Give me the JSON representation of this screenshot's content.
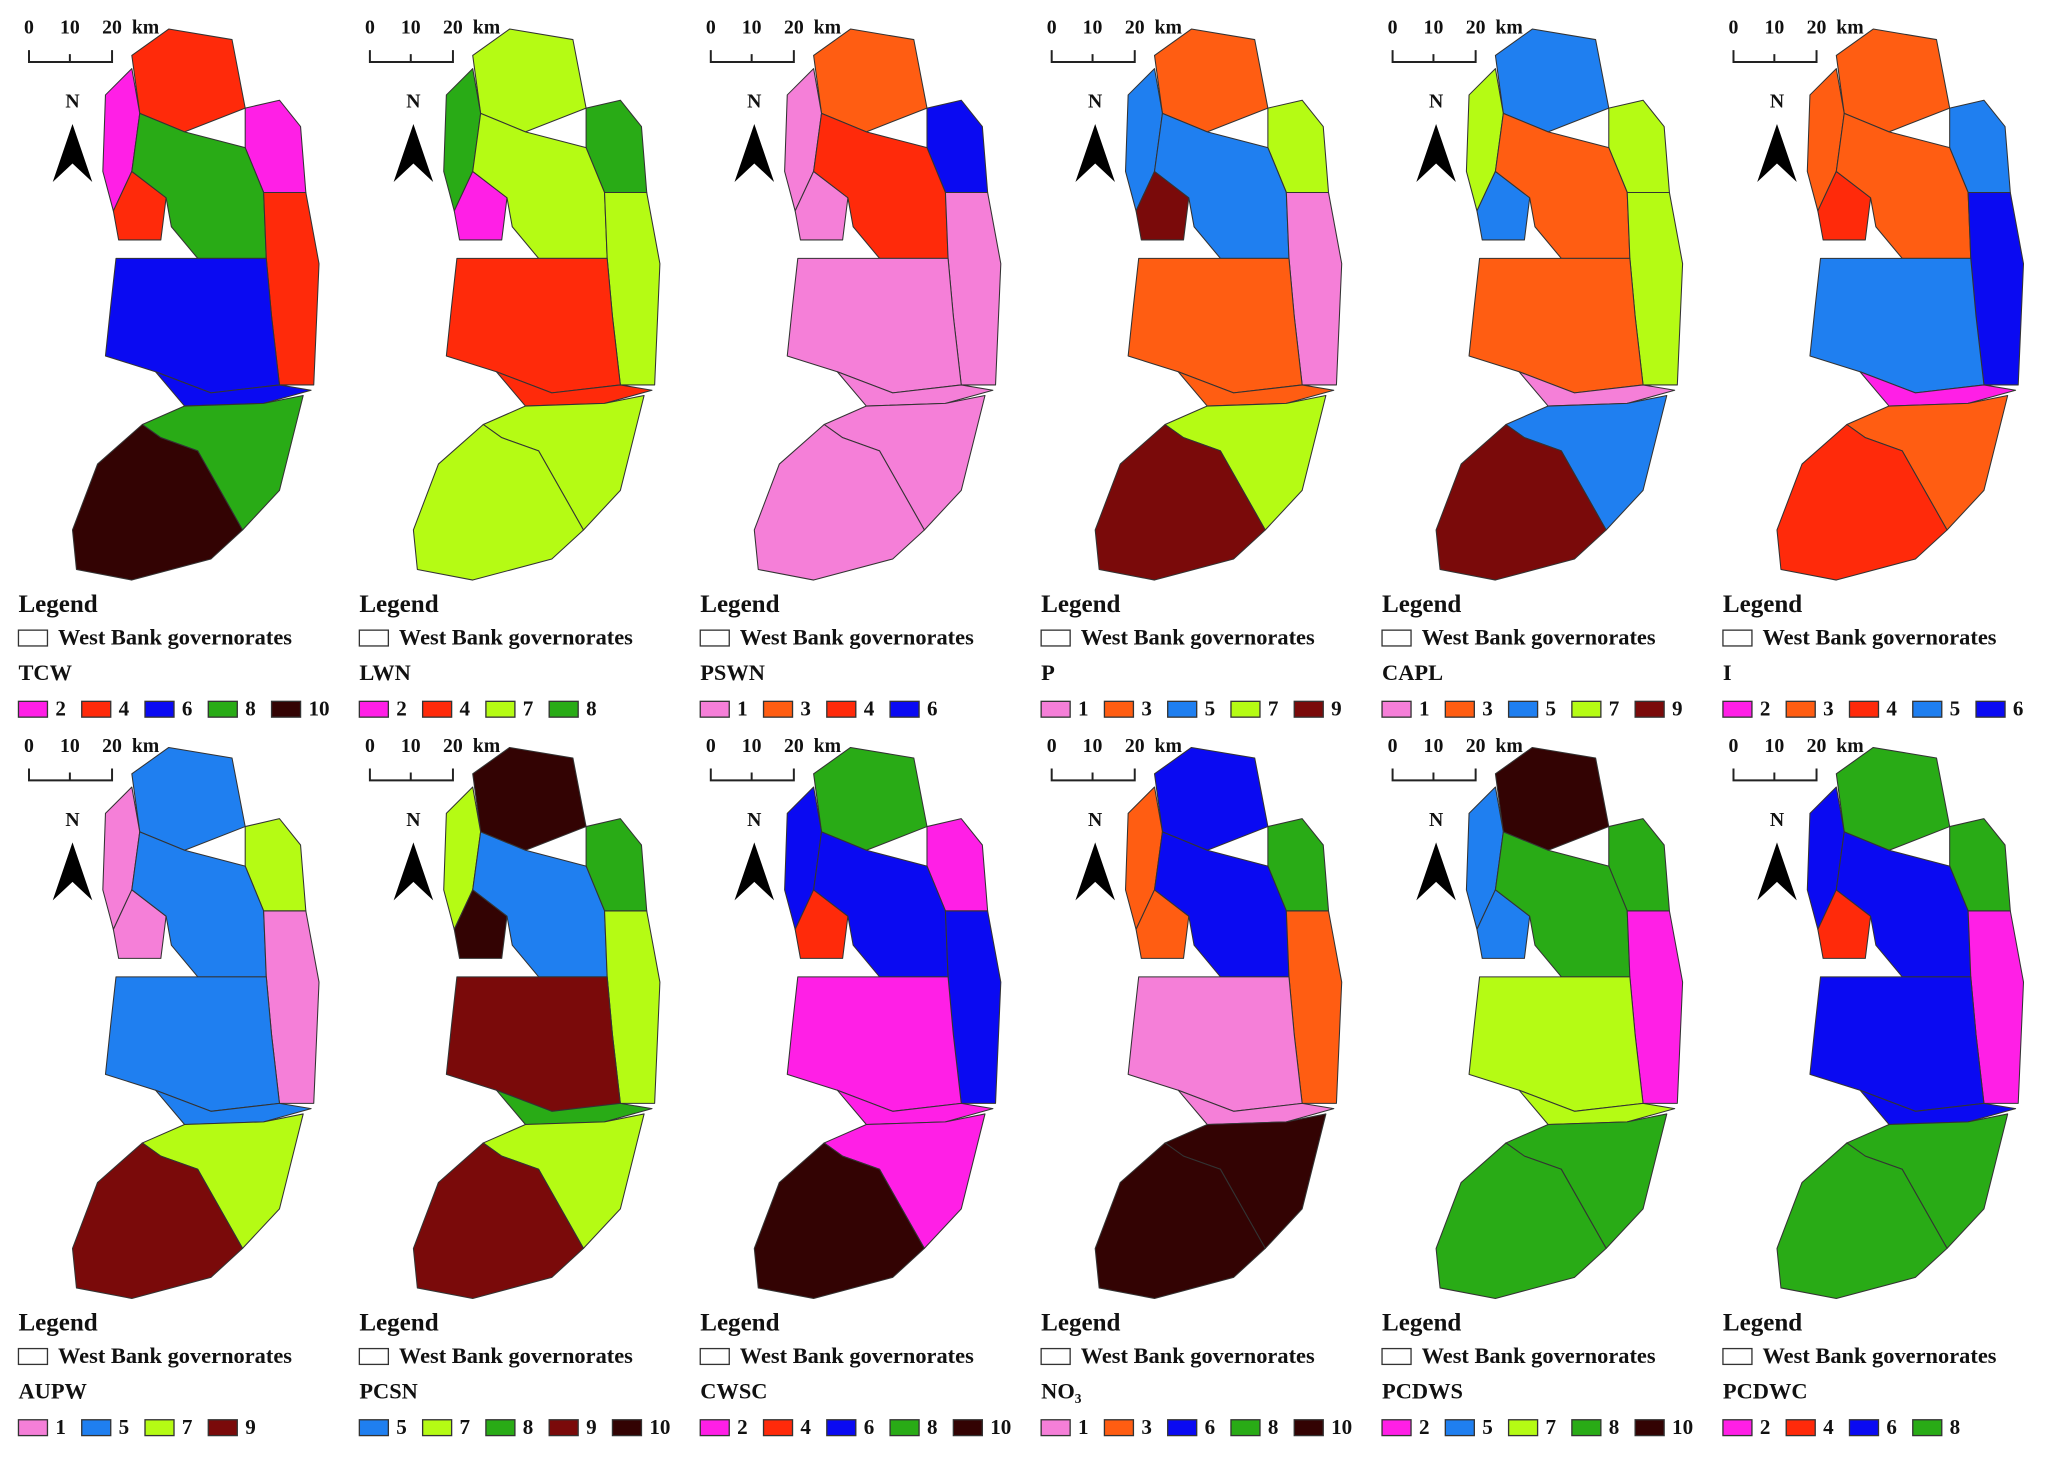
{
  "palette": {
    "1": "#f57fd8",
    "2": "#ff1fe6",
    "3": "#ff5d12",
    "4": "#ff2a0a",
    "5": "#1f7ff0",
    "6": "#0a0af2",
    "7": "#b5fb14",
    "8": "#29ab16",
    "9": "#7a0a0a",
    "10": "#330303"
  },
  "panels": [
    {
      "scale_ticks": [
        0,
        10,
        20
      ],
      "scale_unit": "km",
      "north": "N",
      "legend_title": "Legend",
      "layer": "West Bank governorates",
      "variable": "TCW",
      "classes": [
        2,
        4,
        6,
        8,
        10
      ],
      "regions": [
        4,
        2,
        2,
        4,
        8,
        4,
        6,
        6,
        8,
        10
      ]
    },
    {
      "scale_ticks": [
        0,
        10,
        20
      ],
      "scale_unit": "km",
      "north": "N",
      "legend_title": "Legend",
      "layer": "West Bank governorates",
      "variable": "LWN",
      "classes": [
        2,
        4,
        7,
        8
      ],
      "regions": [
        7,
        8,
        8,
        2,
        7,
        7,
        4,
        4,
        7,
        7
      ]
    },
    {
      "scale_ticks": [
        0,
        10,
        20
      ],
      "scale_unit": "km",
      "north": "N",
      "legend_title": "Legend",
      "layer": "West Bank governorates",
      "variable": "PSWN",
      "classes": [
        1,
        3,
        4,
        6
      ],
      "regions": [
        3,
        6,
        1,
        1,
        4,
        1,
        1,
        1,
        1,
        1
      ]
    },
    {
      "scale_ticks": [
        0,
        10,
        20
      ],
      "scale_unit": "km",
      "north": "N",
      "legend_title": "Legend",
      "layer": "West Bank governorates",
      "variable": "P",
      "classes": [
        1,
        3,
        5,
        7,
        9
      ],
      "regions": [
        3,
        7,
        5,
        9,
        5,
        1,
        3,
        3,
        7,
        9
      ]
    },
    {
      "scale_ticks": [
        0,
        10,
        20
      ],
      "scale_unit": "km",
      "north": "N",
      "legend_title": "Legend",
      "layer": "West Bank governorates",
      "variable": "CAPL",
      "classes": [
        1,
        3,
        5,
        7,
        9
      ],
      "regions": [
        5,
        7,
        7,
        5,
        3,
        7,
        3,
        1,
        5,
        9
      ]
    },
    {
      "scale_ticks": [
        0,
        10,
        20
      ],
      "scale_unit": "km",
      "north": "N",
      "legend_title": "Legend",
      "layer": "West Bank governorates",
      "variable": "I",
      "classes": [
        2,
        3,
        4,
        5,
        6
      ],
      "regions": [
        3,
        5,
        3,
        4,
        3,
        6,
        5,
        2,
        3,
        4
      ]
    },
    {
      "scale_ticks": [
        0,
        10,
        20
      ],
      "scale_unit": "km",
      "north": "N",
      "legend_title": "Legend",
      "layer": "West Bank governorates",
      "variable": "AUPW",
      "classes": [
        1,
        5,
        7,
        9
      ],
      "regions": [
        5,
        7,
        1,
        1,
        5,
        1,
        5,
        5,
        7,
        9
      ]
    },
    {
      "scale_ticks": [
        0,
        10,
        20
      ],
      "scale_unit": "km",
      "north": "N",
      "legend_title": "Legend",
      "layer": "West Bank governorates",
      "variable": "PCSN",
      "classes": [
        5,
        7,
        8,
        9,
        10
      ],
      "regions": [
        10,
        8,
        7,
        10,
        5,
        7,
        9,
        8,
        7,
        9
      ]
    },
    {
      "scale_ticks": [
        0,
        10,
        20
      ],
      "scale_unit": "km",
      "north": "N",
      "legend_title": "Legend",
      "layer": "West Bank governorates",
      "variable": "CWSC",
      "classes": [
        2,
        4,
        6,
        8,
        10
      ],
      "regions": [
        8,
        2,
        6,
        4,
        6,
        6,
        2,
        2,
        2,
        10
      ]
    },
    {
      "scale_ticks": [
        0,
        10,
        20
      ],
      "scale_unit": "km",
      "north": "N",
      "legend_title": "Legend",
      "layer": "West Bank governorates",
      "variable": "NO₃",
      "classes": [
        1,
        3,
        6,
        8,
        10
      ],
      "regions": [
        6,
        8,
        3,
        3,
        6,
        3,
        1,
        1,
        10,
        10
      ]
    },
    {
      "scale_ticks": [
        0,
        10,
        20
      ],
      "scale_unit": "km",
      "north": "N",
      "legend_title": "Legend",
      "layer": "West Bank governorates",
      "variable": "PCDWS",
      "classes": [
        2,
        5,
        7,
        8,
        10
      ],
      "regions": [
        10,
        8,
        5,
        5,
        8,
        2,
        7,
        7,
        8,
        8
      ]
    },
    {
      "scale_ticks": [
        0,
        10,
        20
      ],
      "scale_unit": "km",
      "north": "N",
      "legend_title": "Legend",
      "layer": "West Bank governorates",
      "variable": "PCDWC",
      "classes": [
        2,
        4,
        6,
        8
      ],
      "regions": [
        8,
        8,
        6,
        4,
        6,
        2,
        6,
        6,
        8,
        8
      ]
    }
  ]
}
